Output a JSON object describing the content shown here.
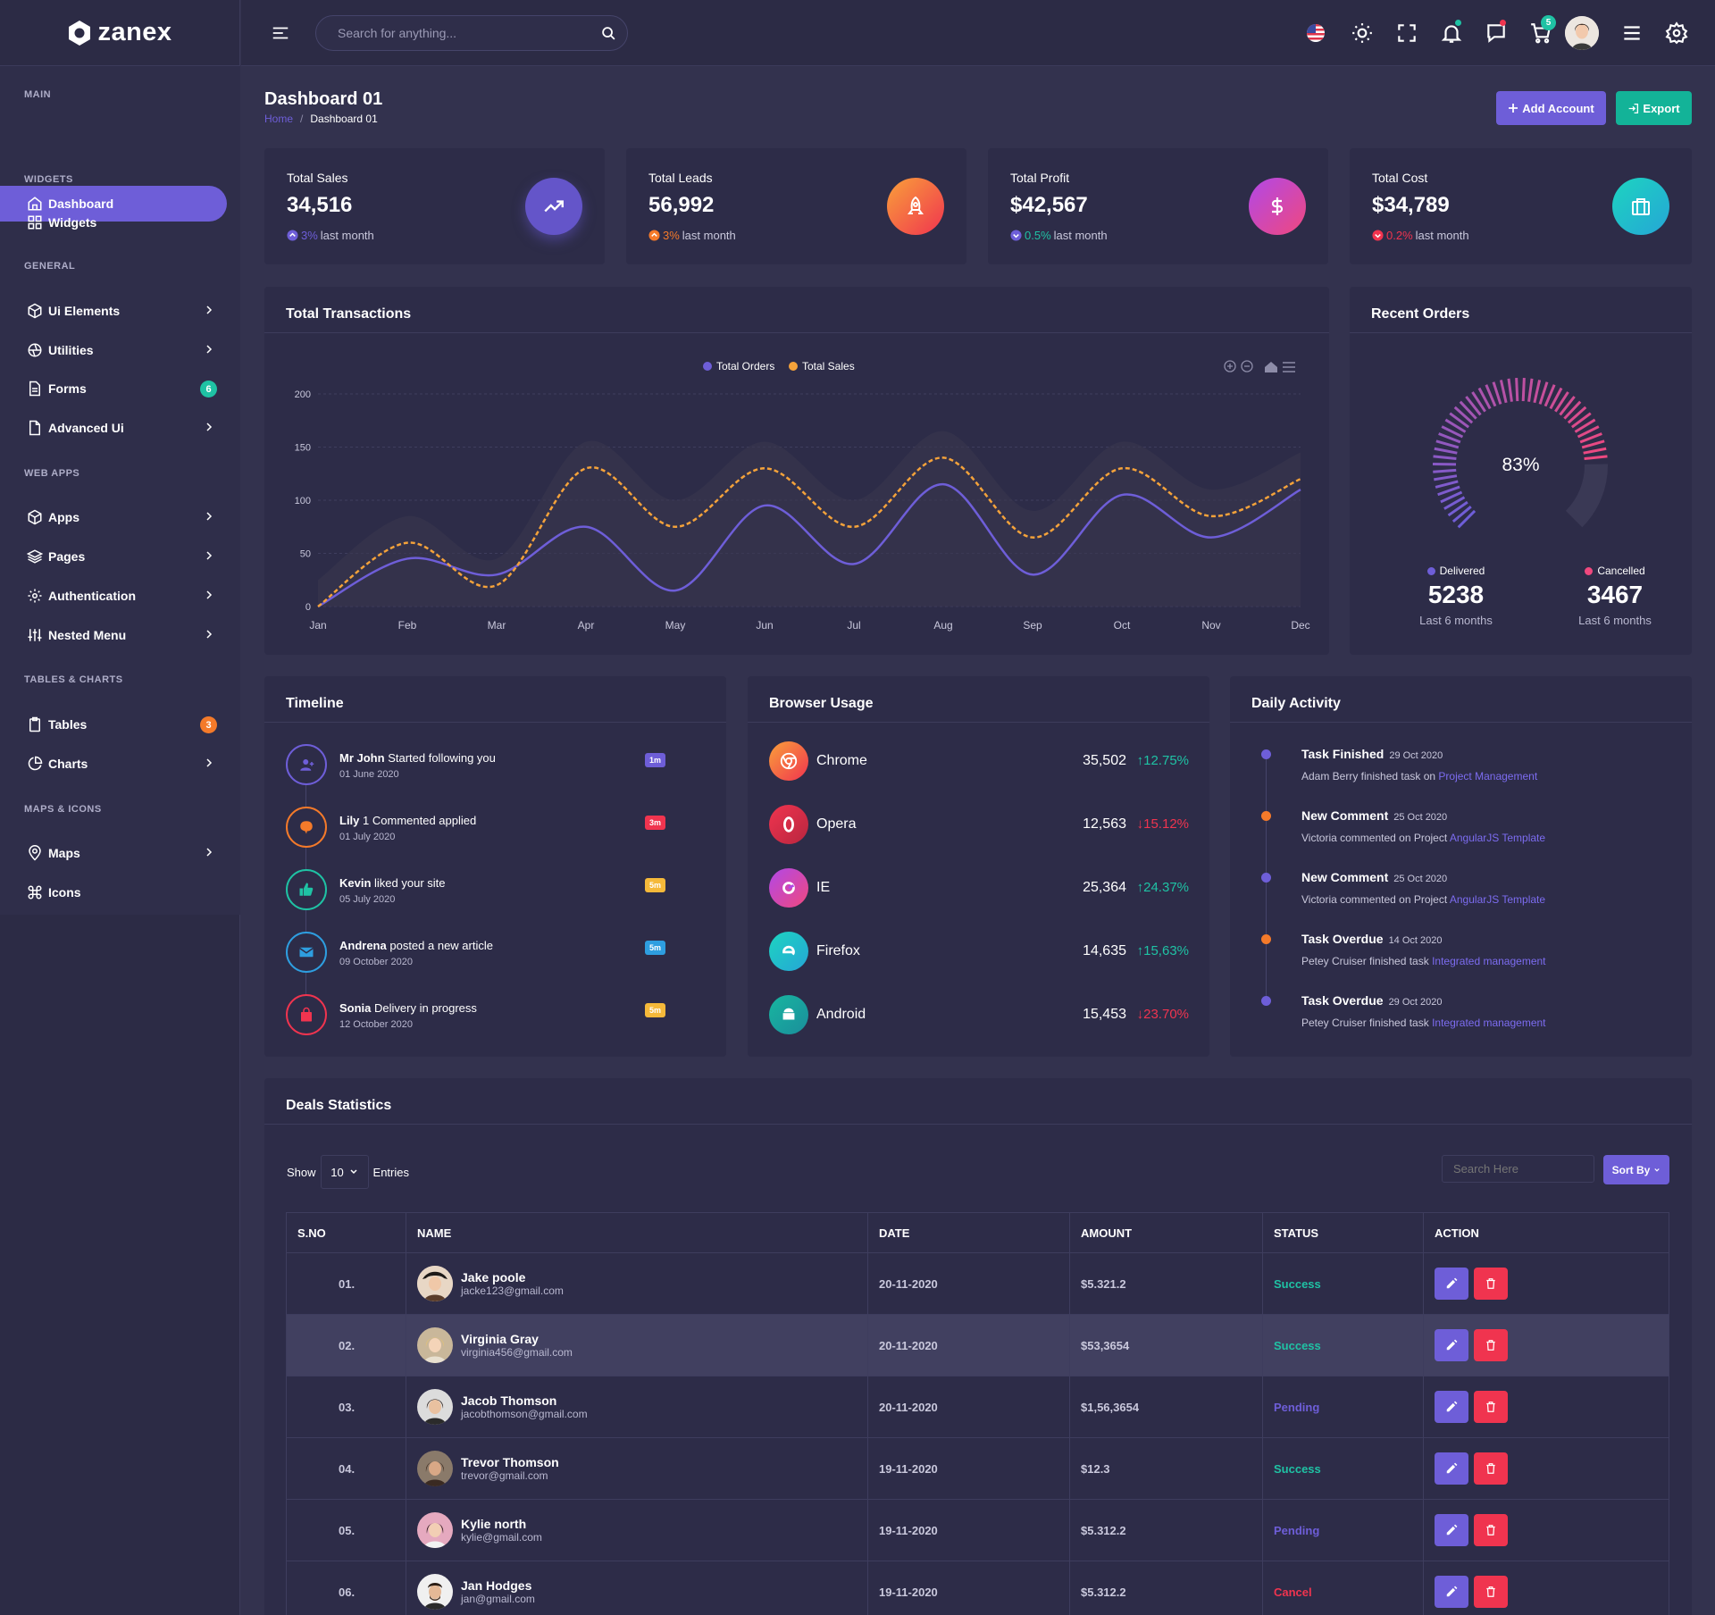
{
  "app": {
    "name": "zanex"
  },
  "search": {
    "placeholder": "Search for anything..."
  },
  "header": {
    "cart_count": "5"
  },
  "sidebar": {
    "categories": [
      "MAIN",
      "WIDGETS",
      "GENERAL",
      "WEB APPS",
      "TABLES & CHARTS",
      "MAPS & ICONS"
    ],
    "items": [
      {
        "label": "Dashboard"
      },
      {
        "label": "Widgets"
      },
      {
        "label": "Ui Elements"
      },
      {
        "label": "Utilities"
      },
      {
        "label": "Forms",
        "badge": "6"
      },
      {
        "label": "Advanced Ui"
      },
      {
        "label": "Apps"
      },
      {
        "label": "Pages"
      },
      {
        "label": "Authentication"
      },
      {
        "label": "Nested Menu"
      },
      {
        "label": "Tables",
        "badge": "3"
      },
      {
        "label": "Charts"
      },
      {
        "label": "Maps"
      },
      {
        "label": "Icons"
      }
    ]
  },
  "page": {
    "title": "Dashboard 01",
    "breadcrumb": {
      "home": "Home",
      "sep": "/",
      "current": "Dashboard 01"
    },
    "add_account": "Add Account",
    "export": "Export"
  },
  "stats": [
    {
      "label": "Total Sales",
      "value": "34,516",
      "pct": "3%",
      "suffix": "last month",
      "pct_color": "#6e5ed8",
      "icon": "trending-up-icon"
    },
    {
      "label": "Total Leads",
      "value": "56,992",
      "pct": "3%",
      "suffix": "last month",
      "pct_color": "#f47a2a",
      "icon": "rocket-icon"
    },
    {
      "label": "Total Profit",
      "value": "$42,567",
      "pct": "0.5%",
      "suffix": "last month",
      "pct_color": "#1fc2a4",
      "icon": "dollar-icon"
    },
    {
      "label": "Total Cost",
      "value": "$34,789",
      "pct": "0.2%",
      "suffix": "last month",
      "pct_color": "#f0344f",
      "icon": "briefcase-icon"
    }
  ],
  "transactions": {
    "title": "Total Transactions"
  },
  "chart_data": {
    "type": "line",
    "categories": [
      "Jan",
      "Feb",
      "Mar",
      "Apr",
      "May",
      "Jun",
      "Jul",
      "Aug",
      "Sep",
      "Oct",
      "Nov",
      "Dec"
    ],
    "series": [
      {
        "name": "Total Orders",
        "values": [
          0,
          45,
          30,
          75,
          15,
          95,
          40,
          115,
          30,
          105,
          65,
          110
        ],
        "color": "#6e5ed8"
      },
      {
        "name": "Total Sales",
        "values": [
          0,
          60,
          20,
          130,
          75,
          130,
          75,
          140,
          65,
          130,
          85,
          120
        ],
        "color": "#f4a23a"
      }
    ],
    "yticks": [
      0,
      50,
      100,
      150,
      200
    ],
    "ylim": [
      0,
      200
    ]
  },
  "recent_orders": {
    "title": "Recent Orders",
    "percent": "83%",
    "percent_value": 83,
    "delivered": {
      "label": "Delivered",
      "value": "5238",
      "sub": "Last 6 months"
    },
    "cancelled": {
      "label": "Cancelled",
      "value": "3467",
      "sub": "Last 6 months"
    }
  },
  "timeline": {
    "title": "Timeline",
    "items": [
      {
        "name": "Mr John",
        "text": "Started following you",
        "date": "01 June 2020",
        "badge": "1m",
        "color": "#6e5ed8",
        "icon": "user-plus-icon"
      },
      {
        "name": "Lily",
        "text": "1 Commented applied",
        "date": "01 July 2020",
        "badge": "3m",
        "color": "#f47a2a",
        "icon": "comment-icon"
      },
      {
        "name": "Kevin",
        "text": "liked your site",
        "date": "05 July 2020",
        "badge": "5m",
        "color": "#1fc2a4",
        "icon": "thumbs-up-icon"
      },
      {
        "name": "Andrena",
        "text": "posted a new article",
        "date": "09 October 2020",
        "badge": "5m",
        "color": "#2e9ee0",
        "icon": "mail-icon"
      },
      {
        "name": "Sonia",
        "text": "Delivery in progress",
        "date": "12 October 2020",
        "badge": "5m",
        "color": "#f0344f",
        "icon": "bag-icon"
      }
    ],
    "badge_colors": [
      "#6e5ed8",
      "#f0344f",
      "#f5b93a",
      "#2e9ee0",
      "#f5b93a"
    ]
  },
  "browser": {
    "title": "Browser Usage",
    "rows": [
      {
        "name": "Chrome",
        "value": "35,502",
        "pct": "12.75%",
        "dir": "up"
      },
      {
        "name": "Opera",
        "value": "12,563",
        "pct": "15.12%",
        "dir": "down"
      },
      {
        "name": "IE",
        "value": "25,364",
        "pct": "24.37%",
        "dir": "up"
      },
      {
        "name": "Firefox",
        "value": "14,635",
        "pct": "15,63%",
        "dir": "up"
      },
      {
        "name": "Android",
        "value": "15,453",
        "pct": "23.70%",
        "dir": "down"
      }
    ]
  },
  "daily": {
    "title": "Daily Activity",
    "items": [
      {
        "title": "Task Finished",
        "date": "29 Oct 2020",
        "desc": "Adam Berry finished task on",
        "link": "Project Management",
        "dot": "#6e5ed8"
      },
      {
        "title": "New Comment",
        "date": "25 Oct 2020",
        "desc": "Victoria commented on Project",
        "link": "AngularJS Template",
        "dot": "#f47a2a"
      },
      {
        "title": "New Comment",
        "date": "25 Oct 2020",
        "desc": "Victoria commented on Project",
        "link": "AngularJS Template",
        "dot": "#6e5ed8"
      },
      {
        "title": "Task Overdue",
        "date": "14 Oct 2020",
        "desc": "Petey Cruiser finished task",
        "link": "Integrated management",
        "dot": "#f47a2a"
      },
      {
        "title": "Task Overdue",
        "date": "29 Oct 2020",
        "desc": "Petey Cruiser finished task",
        "link": "Integrated management",
        "dot": "#6e5ed8"
      }
    ]
  },
  "deals": {
    "title": "Deals Statistics",
    "show": "Show",
    "entries_value": "10",
    "entries": "Entries",
    "search_placeholder": "Search Here",
    "sort": "Sort By",
    "headers": [
      "S.NO",
      "NAME",
      "DATE",
      "AMOUNT",
      "STATUS",
      "ACTION"
    ],
    "rows": [
      {
        "sno": "01.",
        "name": "Jake poole",
        "email": "jacke123@gmail.com",
        "date": "20-11-2020",
        "amount": "$5.321.2",
        "status": "Success"
      },
      {
        "sno": "02.",
        "name": "Virginia Gray",
        "email": "virginia456@gmail.com",
        "date": "20-11-2020",
        "amount": "$53,3654",
        "status": "Success"
      },
      {
        "sno": "03.",
        "name": "Jacob Thomson",
        "email": "jacobthomson@gmail.com",
        "date": "20-11-2020",
        "amount": "$1,56,3654",
        "status": "Pending"
      },
      {
        "sno": "04.",
        "name": "Trevor Thomson",
        "email": "trevor@gmail.com",
        "date": "19-11-2020",
        "amount": "$12.3",
        "status": "Success"
      },
      {
        "sno": "05.",
        "name": "Kylie north",
        "email": "kylie@gmail.com",
        "date": "19-11-2020",
        "amount": "$5.312.2",
        "status": "Pending"
      },
      {
        "sno": "06.",
        "name": "Jan Hodges",
        "email": "jan@gmail.com",
        "date": "19-11-2020",
        "amount": "$5.312.2",
        "status": "Cancel"
      }
    ],
    "status_colors": {
      "Success": "#1fc2a4",
      "Pending": "#6e5ed8",
      "Cancel": "#f0344f"
    }
  }
}
